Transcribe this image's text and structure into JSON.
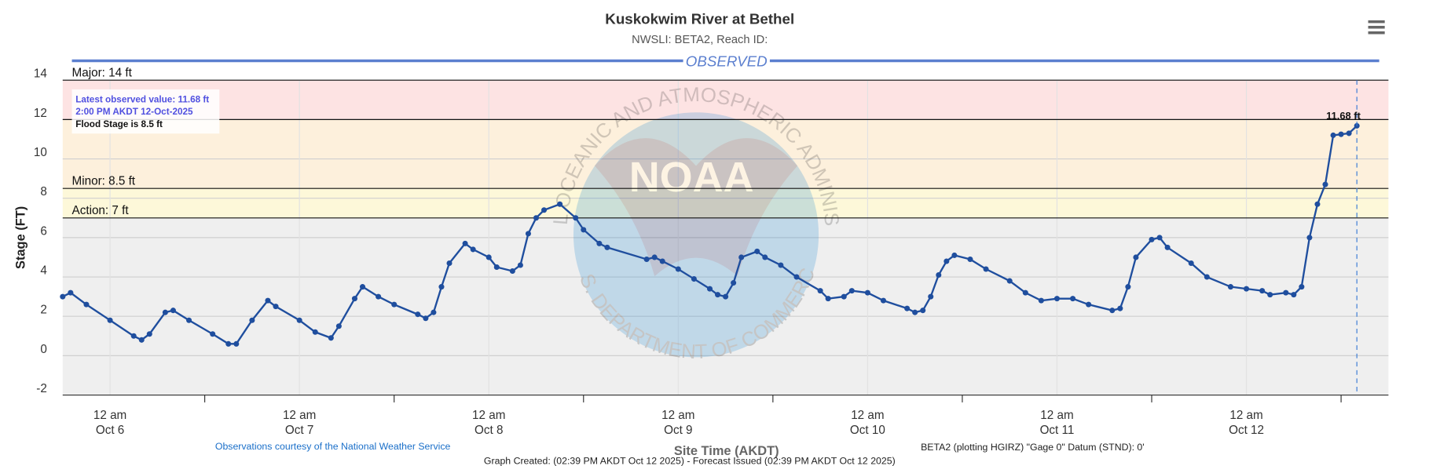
{
  "chart_data": {
    "type": "line",
    "title": "Kuskokwim River at Bethel",
    "subtitle": "NWSLI: BETA2, Reach ID:",
    "banner": "OBSERVED",
    "y_label": "Stage (FT)",
    "x_label": "Site Time (AKDT)",
    "credit": "Observations courtesy of the National Weather Service",
    "datum_note": "BETA2 (plotting HGIRZ) \"Gage 0\" Datum (STND): 0'",
    "footer": "Graph Created: (02:39 PM AKDT Oct 12 2025) - Forecast Issued (02:39 PM AKDT Oct 12 2025)",
    "annotation": [
      "Latest observed value: 11.68 ft",
      "2:00 PM AKDT 12-Oct-2025",
      "Flood Stage is 8.5 ft"
    ],
    "watermark": {
      "logo": "NOAA",
      "ring_top": "NATIONAL OCEANIC AND ATMOSPHERIC ADMINISTRATION",
      "ring_bottom": "U.S. DEPARTMENT OF COMMERCE"
    },
    "color": "#1f4e9e",
    "grid": true,
    "ylim": [
      -2,
      14
    ],
    "yticks": [
      -2,
      0,
      2,
      4,
      6,
      8,
      10,
      12,
      14
    ],
    "xlim": [
      "Oct 5 18:00",
      "Oct 12 18:00"
    ],
    "xticks": [
      {
        "value": "Oct 6 00:00",
        "label": [
          "12 am",
          "Oct 6"
        ]
      },
      {
        "value": "Oct 7 00:00",
        "label": [
          "12 am",
          "Oct 7"
        ]
      },
      {
        "value": "Oct 8 00:00",
        "label": [
          "12 am",
          "Oct 8"
        ]
      },
      {
        "value": "Oct 9 00:00",
        "label": [
          "12 am",
          "Oct 9"
        ]
      },
      {
        "value": "Oct 10 00:00",
        "label": [
          "12 am",
          "Oct 10"
        ]
      },
      {
        "value": "Oct 11 00:00",
        "label": [
          "12 am",
          "Oct 11"
        ]
      },
      {
        "value": "Oct 12 00:00",
        "label": [
          "12 am",
          "Oct 12"
        ]
      }
    ],
    "xticks_minor": [
      "Oct 6 12:00",
      "Oct 7 12:00",
      "Oct 8 12:00",
      "Oct 9 12:00",
      "Oct 10 12:00",
      "Oct 11 12:00",
      "Oct 12 12:00"
    ],
    "thresholds": [
      {
        "value": 14,
        "label": "Major: 14 ft",
        "band": "#fde3e3"
      },
      {
        "value": 12,
        "label": null,
        "band": "#fdf0dc"
      },
      {
        "value": 8.5,
        "label": "Minor: 8.5 ft",
        "band": "#fdf8d9"
      },
      {
        "value": 7,
        "label": "Action: 7 ft",
        "band": "#efefef"
      }
    ],
    "x": [
      "Oct 5 18:00",
      "Oct 5 19:00",
      "Oct 5 21:00",
      "Oct 6 00:00",
      "Oct 6 03:00",
      "Oct 6 04:00",
      "Oct 6 05:00",
      "Oct 6 07:00",
      "Oct 6 08:00",
      "Oct 6 10:00",
      "Oct 6 13:00",
      "Oct 6 15:00",
      "Oct 6 16:00",
      "Oct 6 18:00",
      "Oct 6 20:00",
      "Oct 6 21:00",
      "Oct 7 00:00",
      "Oct 7 02:00",
      "Oct 7 04:00",
      "Oct 7 05:00",
      "Oct 7 07:00",
      "Oct 7 08:00",
      "Oct 7 10:00",
      "Oct 7 12:00",
      "Oct 7 15:00",
      "Oct 7 16:00",
      "Oct 7 17:00",
      "Oct 7 18:00",
      "Oct 7 19:00",
      "Oct 7 21:00",
      "Oct 7 22:00",
      "Oct 8 00:00",
      "Oct 8 01:00",
      "Oct 8 03:00",
      "Oct 8 04:00",
      "Oct 8 05:00",
      "Oct 8 06:00",
      "Oct 8 07:00",
      "Oct 8 09:00",
      "Oct 8 11:00",
      "Oct 8 12:00",
      "Oct 8 14:00",
      "Oct 8 15:00",
      "Oct 8 20:00",
      "Oct 8 21:00",
      "Oct 8 22:00",
      "Oct 9 00:00",
      "Oct 9 02:00",
      "Oct 9 04:00",
      "Oct 9 05:00",
      "Oct 9 06:00",
      "Oct 9 07:00",
      "Oct 9 08:00",
      "Oct 9 10:00",
      "Oct 9 11:00",
      "Oct 9 13:00",
      "Oct 9 15:00",
      "Oct 9 18:00",
      "Oct 9 19:00",
      "Oct 9 21:00",
      "Oct 9 22:00",
      "Oct 10 00:00",
      "Oct 10 02:00",
      "Oct 10 05:00",
      "Oct 10 06:00",
      "Oct 10 07:00",
      "Oct 10 08:00",
      "Oct 10 09:00",
      "Oct 10 10:00",
      "Oct 10 11:00",
      "Oct 10 13:00",
      "Oct 10 15:00",
      "Oct 10 18:00",
      "Oct 10 20:00",
      "Oct 10 22:00",
      "Oct 11 00:00",
      "Oct 11 02:00",
      "Oct 11 04:00",
      "Oct 11 07:00",
      "Oct 11 08:00",
      "Oct 11 09:00",
      "Oct 11 10:00",
      "Oct 11 12:00",
      "Oct 11 13:00",
      "Oct 11 14:00",
      "Oct 11 17:00",
      "Oct 11 19:00",
      "Oct 11 22:00",
      "Oct 12 00:00",
      "Oct 12 02:00",
      "Oct 12 03:00",
      "Oct 12 05:00",
      "Oct 12 06:00",
      "Oct 12 07:00",
      "Oct 12 08:00",
      "Oct 12 09:00",
      "Oct 12 10:00",
      "Oct 12 11:00",
      "Oct 12 12:00",
      "Oct 12 13:00",
      "Oct 12 14:00"
    ],
    "values": [
      3.0,
      3.2,
      2.6,
      1.8,
      1.0,
      0.8,
      1.1,
      2.2,
      2.3,
      1.8,
      1.1,
      0.6,
      0.6,
      1.8,
      2.8,
      2.5,
      1.8,
      1.2,
      0.9,
      1.5,
      2.9,
      3.5,
      3.0,
      2.6,
      2.1,
      1.9,
      2.2,
      3.5,
      4.7,
      5.7,
      5.4,
      5.0,
      4.5,
      4.3,
      4.6,
      6.2,
      7.0,
      7.4,
      7.7,
      7.0,
      6.4,
      5.7,
      5.5,
      4.9,
      5.0,
      4.8,
      4.4,
      3.9,
      3.4,
      3.1,
      3.0,
      3.7,
      5.0,
      5.3,
      5.0,
      4.6,
      4.0,
      3.3,
      2.9,
      3.0,
      3.3,
      3.2,
      2.8,
      2.4,
      2.2,
      2.3,
      3.0,
      4.1,
      4.8,
      5.1,
      4.9,
      4.4,
      3.8,
      3.2,
      2.8,
      2.9,
      2.9,
      2.6,
      2.3,
      2.4,
      3.5,
      5.0,
      5.9,
      6.0,
      5.5,
      4.7,
      4.0,
      3.5,
      3.4,
      3.3,
      3.1,
      3.2,
      3.1,
      3.5,
      6.0,
      7.7,
      8.7,
      11.2,
      11.25,
      11.3,
      11.68
    ],
    "value_labels": {
      "last": "11.68 ft"
    }
  }
}
